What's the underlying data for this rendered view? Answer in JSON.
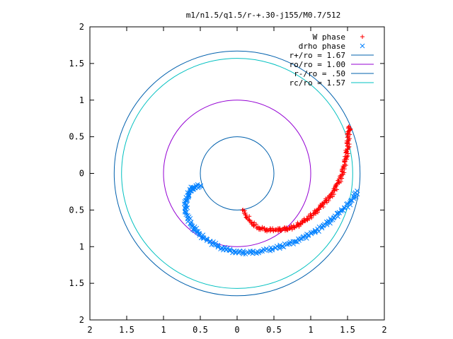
{
  "chart_data": {
    "type": "scatter",
    "title": "m1/n1.5/q1.5/r-+.30-j155/M0.7/512",
    "xlim": [
      -2,
      2
    ],
    "ylim": [
      -2,
      2
    ],
    "x_ticks": [
      -2,
      -1.5,
      -1,
      -0.5,
      0,
      0.5,
      1,
      1.5,
      2
    ],
    "y_ticks": [
      -2,
      -1.5,
      -1,
      -0.5,
      0,
      0.5,
      1,
      1.5,
      2
    ],
    "x_tick_labels": [
      "2",
      "1.5",
      "1",
      "0.5",
      "0",
      "0.5",
      "1",
      "1.5",
      "2"
    ],
    "y_tick_labels": [
      "2",
      "1.5",
      "1",
      "0.5",
      "0",
      "0.5",
      "1",
      "1.5",
      "2"
    ],
    "grid": false,
    "legend_position": "top-right",
    "series": [
      {
        "name": "W phase",
        "kind": "points",
        "marker": "plus",
        "color": "#ff0000",
        "points": [
          [
            0.08,
            -0.5
          ],
          [
            0.12,
            -0.57
          ],
          [
            0.17,
            -0.64
          ],
          [
            0.22,
            -0.7
          ],
          [
            0.28,
            -0.74
          ],
          [
            0.34,
            -0.76
          ],
          [
            0.4,
            -0.77
          ],
          [
            0.46,
            -0.77
          ],
          [
            0.52,
            -0.77
          ],
          [
            0.57,
            -0.77
          ],
          [
            0.62,
            -0.76
          ],
          [
            0.67,
            -0.76
          ],
          [
            0.72,
            -0.75
          ],
          [
            0.77,
            -0.73
          ],
          [
            0.82,
            -0.71
          ],
          [
            0.86,
            -0.68
          ],
          [
            0.91,
            -0.65
          ],
          [
            0.96,
            -0.62
          ],
          [
            1.0,
            -0.58
          ],
          [
            1.05,
            -0.54
          ],
          [
            1.09,
            -0.5
          ],
          [
            1.13,
            -0.46
          ],
          [
            1.17,
            -0.42
          ],
          [
            1.21,
            -0.37
          ],
          [
            1.25,
            -0.33
          ],
          [
            1.29,
            -0.28
          ],
          [
            1.32,
            -0.23
          ],
          [
            1.35,
            -0.17
          ],
          [
            1.38,
            -0.11
          ],
          [
            1.41,
            -0.05
          ],
          [
            1.43,
            0.02
          ],
          [
            1.45,
            0.09
          ],
          [
            1.47,
            0.16
          ],
          [
            1.48,
            0.23
          ],
          [
            1.49,
            0.3
          ],
          [
            1.5,
            0.37
          ],
          [
            1.51,
            0.44
          ],
          [
            1.51,
            0.51
          ],
          [
            1.52,
            0.58
          ],
          [
            1.52,
            0.64
          ]
        ]
      },
      {
        "name": "drho phase",
        "kind": "points",
        "marker": "cross",
        "color": "#0080ff",
        "points": [
          [
            -0.5,
            -0.17
          ],
          [
            -0.55,
            -0.18
          ],
          [
            -0.6,
            -0.2
          ],
          [
            -0.64,
            -0.24
          ],
          [
            -0.67,
            -0.3
          ],
          [
            -0.69,
            -0.37
          ],
          [
            -0.7,
            -0.45
          ],
          [
            -0.69,
            -0.53
          ],
          [
            -0.67,
            -0.61
          ],
          [
            -0.63,
            -0.69
          ],
          [
            -0.58,
            -0.76
          ],
          [
            -0.52,
            -0.82
          ],
          [
            -0.45,
            -0.88
          ],
          [
            -0.37,
            -0.93
          ],
          [
            -0.29,
            -0.98
          ],
          [
            -0.2,
            -1.02
          ],
          [
            -0.11,
            -1.05
          ],
          [
            -0.02,
            -1.07
          ],
          [
            0.08,
            -1.08
          ],
          [
            0.18,
            -1.08
          ],
          [
            0.28,
            -1.07
          ],
          [
            0.38,
            -1.05
          ],
          [
            0.48,
            -1.03
          ],
          [
            0.58,
            -1.0
          ],
          [
            0.68,
            -0.97
          ],
          [
            0.78,
            -0.93
          ],
          [
            0.88,
            -0.89
          ],
          [
            0.97,
            -0.84
          ],
          [
            1.06,
            -0.79
          ],
          [
            1.15,
            -0.73
          ],
          [
            1.23,
            -0.67
          ],
          [
            1.31,
            -0.61
          ],
          [
            1.39,
            -0.54
          ],
          [
            1.46,
            -0.47
          ],
          [
            1.53,
            -0.4
          ],
          [
            1.59,
            -0.32
          ],
          [
            1.63,
            -0.24
          ]
        ]
      },
      {
        "name": "r+/ro = 1.67",
        "kind": "circle",
        "r": 1.67,
        "color": "#0060ad"
      },
      {
        "name": "ro/ro = 1.00",
        "kind": "circle",
        "r": 1.0,
        "color": "#9400d3"
      },
      {
        "name": "r-/ro = .50",
        "kind": "circle",
        "r": 0.5,
        "color": "#0060ad"
      },
      {
        "name": "rc/ro = 1.57",
        "kind": "circle",
        "r": 1.57,
        "color": "#00c0c0"
      }
    ]
  }
}
